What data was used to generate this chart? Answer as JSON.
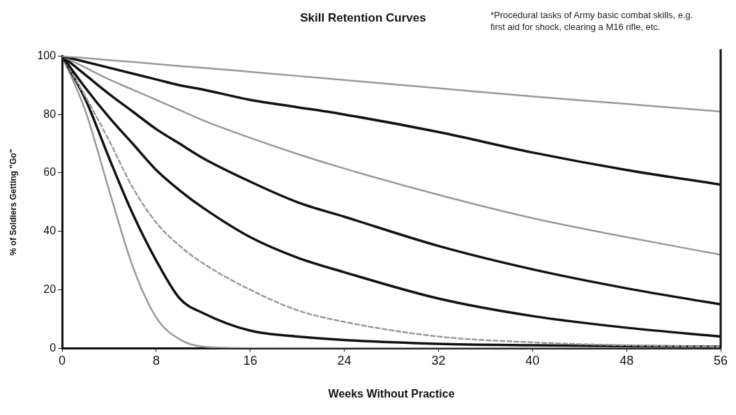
{
  "chart_data": {
    "type": "line",
    "title": "Skill Retention Curves",
    "xlabel": "Weeks Without Practice",
    "ylabel": "% of Soldiers Getting \"Go\"",
    "annotations": [
      "*Procedural tasks of Army basic combat skills, e.g. first aid for shock, clearing a M16 rifle, etc."
    ],
    "x": [
      0,
      2,
      4,
      6,
      8,
      10,
      12,
      16,
      20,
      24,
      32,
      40,
      48,
      56
    ],
    "xlim": [
      0,
      56
    ],
    "xticks": [
      0,
      8,
      16,
      24,
      32,
      40,
      48,
      56
    ],
    "ylim": [
      0,
      100
    ],
    "yticks": [
      0,
      20,
      40,
      60,
      80,
      100
    ],
    "grid": false,
    "legend": false,
    "marker": "none",
    "series": [
      {
        "color": "#999999",
        "values": [
          100,
          99.3,
          98.6,
          98,
          97.3,
          96.6,
          96,
          94.6,
          93.2,
          91.8,
          89,
          86.2,
          83.6,
          81
        ]
      },
      {
        "color": "#111111",
        "values": [
          100,
          98,
          96,
          94,
          92,
          90,
          88.5,
          85,
          82.5,
          80,
          74,
          67,
          61,
          56
        ]
      },
      {
        "color": "#999999",
        "values": [
          100,
          96,
          92,
          88.5,
          85,
          81.5,
          78,
          72,
          66.5,
          61.5,
          52.5,
          44.5,
          38,
          32
        ]
      },
      {
        "color": "#111111",
        "values": [
          100,
          93.5,
          87,
          81,
          75,
          70,
          65,
          57,
          50,
          45,
          35,
          27,
          20.5,
          15
        ]
      },
      {
        "color": "#111111",
        "values": [
          100,
          89,
          79,
          70,
          61,
          54,
          48,
          38,
          31,
          26,
          17,
          11,
          7,
          4
        ]
      },
      {
        "color": "#999999",
        "line_style": "dashed",
        "values": [
          100,
          86,
          71,
          55,
          43,
          35,
          29,
          20,
          13,
          9,
          4,
          2,
          1,
          0.5
        ]
      },
      {
        "color": "#111111",
        "values": [
          100,
          85,
          65,
          46,
          30,
          17,
          12,
          6,
          4,
          2.8,
          1.5,
          1,
          0.7,
          0.5
        ]
      },
      {
        "color": "#999999",
        "values": [
          100,
          81,
          54,
          28,
          10.5,
          3,
          0.5,
          0,
          0,
          0,
          0,
          0,
          0,
          0
        ]
      }
    ]
  }
}
